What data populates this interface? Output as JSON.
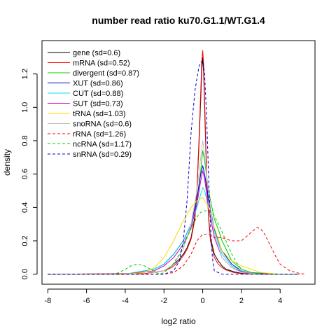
{
  "chart_data": {
    "type": "line",
    "title": "number read ratio ku70.G1.1/WT.G1.4",
    "xlabel": "log2 ratio",
    "ylabel": "density",
    "xlim": [
      -8.3,
      5.8
    ],
    "ylim": [
      -0.06,
      1.4
    ],
    "xticks": [
      -8,
      -6,
      -4,
      -2,
      0,
      2,
      4
    ],
    "yticks": [
      0.0,
      0.2,
      0.4,
      0.6,
      0.8,
      1.0,
      1.2
    ],
    "grid": false,
    "legend_position": "top-left",
    "series": [
      {
        "name": "gene (sd=0.6)",
        "color": "#000000",
        "dash": "solid",
        "x": [
          -8,
          -3.0,
          -2.0,
          -1.6,
          -1.2,
          -1.0,
          -0.8,
          -0.6,
          -0.4,
          -0.3,
          -0.2,
          -0.1,
          -0.05,
          0,
          0.05,
          0.1,
          0.2,
          0.3,
          0.4,
          0.6,
          0.8,
          1.0,
          1.2,
          1.6,
          2.0,
          3.0,
          5.0
        ],
        "y": [
          0,
          0.003,
          0.02,
          0.05,
          0.09,
          0.12,
          0.16,
          0.22,
          0.35,
          0.5,
          0.75,
          1.05,
          1.22,
          1.3,
          1.2,
          1.0,
          0.6,
          0.35,
          0.22,
          0.12,
          0.08,
          0.05,
          0.03,
          0.015,
          0.005,
          0.0,
          0.0
        ]
      },
      {
        "name": "mRNA (sd=0.52)",
        "color": "#ff0000",
        "dash": "solid",
        "x": [
          -8,
          -3.0,
          -2.0,
          -1.6,
          -1.2,
          -1.0,
          -0.8,
          -0.6,
          -0.4,
          -0.3,
          -0.2,
          -0.1,
          -0.05,
          0,
          0.05,
          0.1,
          0.2,
          0.3,
          0.4,
          0.6,
          0.8,
          1.0,
          1.2,
          1.6,
          2.0,
          3.0,
          5.0
        ],
        "y": [
          0,
          0.003,
          0.02,
          0.04,
          0.08,
          0.11,
          0.15,
          0.21,
          0.33,
          0.5,
          0.78,
          1.1,
          1.27,
          1.34,
          1.25,
          1.05,
          0.62,
          0.34,
          0.2,
          0.1,
          0.06,
          0.04,
          0.025,
          0.01,
          0.003,
          0.0,
          0.0
        ]
      },
      {
        "name": "divergent (sd=0.87)",
        "color": "#00cc00",
        "dash": "solid",
        "x": [
          -8,
          -4.0,
          -2.5,
          -2.0,
          -1.5,
          -1.0,
          -0.6,
          -0.3,
          -0.1,
          0,
          0.1,
          0.3,
          0.6,
          0.8,
          1.0,
          1.5,
          2.0,
          2.5,
          4.0,
          5.0
        ],
        "y": [
          0,
          0.0,
          0.03,
          0.06,
          0.12,
          0.2,
          0.3,
          0.45,
          0.62,
          0.74,
          0.68,
          0.5,
          0.33,
          0.27,
          0.2,
          0.08,
          0.03,
          0.01,
          0.0,
          0.0
        ]
      },
      {
        "name": "XUT (sd=0.86)",
        "color": "#0000cc",
        "dash": "solid",
        "x": [
          -8,
          -4.0,
          -2.5,
          -2.0,
          -1.5,
          -1.0,
          -0.6,
          -0.3,
          -0.1,
          0,
          0.1,
          0.3,
          0.6,
          1.0,
          1.5,
          2.0,
          2.5,
          4.0,
          5.0
        ],
        "y": [
          0,
          0.0,
          0.03,
          0.06,
          0.12,
          0.2,
          0.3,
          0.45,
          0.6,
          0.65,
          0.6,
          0.45,
          0.27,
          0.14,
          0.06,
          0.02,
          0.005,
          0.0,
          0.0
        ]
      },
      {
        "name": "CUT (sd=0.88)",
        "color": "#00e5e5",
        "dash": "solid",
        "x": [
          -8,
          -4.0,
          -2.5,
          -2.0,
          -1.5,
          -1.0,
          -0.6,
          -0.3,
          -0.1,
          0,
          0.1,
          0.3,
          0.6,
          1.0,
          1.5,
          2.0,
          2.5,
          4.0,
          5.0
        ],
        "y": [
          0,
          0.0,
          0.03,
          0.06,
          0.12,
          0.2,
          0.3,
          0.4,
          0.48,
          0.52,
          0.5,
          0.4,
          0.26,
          0.12,
          0.05,
          0.02,
          0.005,
          0.0,
          0.0
        ]
      },
      {
        "name": "SUT (sd=0.73)",
        "color": "#cc00cc",
        "dash": "solid",
        "x": [
          -8,
          -4.0,
          -2.5,
          -2.0,
          -1.5,
          -1.0,
          -0.6,
          -0.3,
          -0.1,
          0,
          0.1,
          0.3,
          0.6,
          1.0,
          1.5,
          2.0,
          2.5,
          4.0,
          5.0
        ],
        "y": [
          0,
          0.0,
          0.02,
          0.05,
          0.1,
          0.18,
          0.28,
          0.42,
          0.56,
          0.62,
          0.57,
          0.4,
          0.22,
          0.1,
          0.04,
          0.015,
          0.005,
          0.0,
          0.0
        ]
      },
      {
        "name": "tRNA (sd=1.03)",
        "color": "#ffd700",
        "dash": "solid",
        "x": [
          -8,
          -4.0,
          -3.0,
          -2.5,
          -2.0,
          -1.5,
          -1.0,
          -0.6,
          -0.3,
          0,
          0.3,
          0.6,
          1.0,
          1.5,
          2.0,
          2.5,
          3.0,
          4.0,
          5.0
        ],
        "y": [
          0,
          0.0,
          0.01,
          0.04,
          0.1,
          0.2,
          0.32,
          0.4,
          0.44,
          0.46,
          0.4,
          0.28,
          0.14,
          0.08,
          0.05,
          0.03,
          0.01,
          0.0,
          0.0
        ]
      },
      {
        "name": "snoRNA (sd=0.6)",
        "color": "#bfbfbf",
        "dash": "solid",
        "x": [
          -8,
          -3.0,
          -2.0,
          -1.5,
          -1.0,
          -0.6,
          -0.3,
          -0.1,
          0,
          0.1,
          0.3,
          0.6,
          1.0,
          1.5,
          2.0,
          3.0,
          5.0
        ],
        "y": [
          0,
          0.0,
          0.02,
          0.06,
          0.15,
          0.3,
          0.5,
          0.7,
          0.8,
          0.72,
          0.48,
          0.24,
          0.1,
          0.04,
          0.01,
          0.0,
          0.0
        ]
      },
      {
        "name": "rRNA (sd=1.26)",
        "color": "#ff0000",
        "dash": "dashed",
        "x": [
          -8,
          -2.0,
          -1.5,
          -1.0,
          -0.6,
          -0.3,
          0,
          0.3,
          0.6,
          0.8,
          1.0,
          1.2,
          1.5,
          1.8,
          2.0,
          2.2,
          2.5,
          2.8,
          3.0,
          3.2,
          3.5,
          3.8,
          4.0,
          4.5,
          5.0,
          5.3
        ],
        "y": [
          0,
          0.0,
          0.01,
          0.05,
          0.12,
          0.2,
          0.24,
          0.24,
          0.22,
          0.22,
          0.22,
          0.21,
          0.2,
          0.2,
          0.2,
          0.22,
          0.25,
          0.28,
          0.27,
          0.24,
          0.17,
          0.1,
          0.06,
          0.02,
          0.005,
          0.0
        ]
      },
      {
        "name": "ncRNA (sd=1.17)",
        "color": "#00cc00",
        "dash": "dashed",
        "x": [
          -8,
          -4.6,
          -4.3,
          -4.0,
          -3.7,
          -3.4,
          -3.0,
          -2.7,
          -2.4,
          -2.2,
          -2.0,
          -1.6,
          -1.2,
          -0.8,
          -0.5,
          -0.2,
          0,
          0.3,
          0.6,
          0.9,
          1.2,
          1.5,
          1.8,
          2.0,
          2.5,
          3.0,
          4.0,
          5.0
        ],
        "y": [
          0,
          0.0,
          0.01,
          0.03,
          0.05,
          0.06,
          0.05,
          0.03,
          0.01,
          0.0,
          0.01,
          0.05,
          0.12,
          0.22,
          0.3,
          0.36,
          0.38,
          0.38,
          0.35,
          0.28,
          0.2,
          0.12,
          0.06,
          0.03,
          0.01,
          0.0,
          0.0,
          0.0
        ]
      },
      {
        "name": "snRNA (sd=0.29)",
        "color": "#0000cc",
        "dash": "dashed",
        "x": [
          -8,
          -2.0,
          -1.5,
          -1.2,
          -1.0,
          -0.8,
          -0.6,
          -0.4,
          -0.2,
          -0.1,
          0,
          0.1,
          0.2,
          0.3,
          0.4,
          0.5,
          0.6,
          1.0,
          5.0
        ],
        "y": [
          0,
          0.0,
          0.02,
          0.08,
          0.2,
          0.45,
          0.85,
          1.1,
          1.24,
          1.27,
          1.28,
          1.2,
          0.95,
          0.6,
          0.3,
          0.1,
          0.02,
          0.0,
          0.0
        ]
      }
    ]
  }
}
